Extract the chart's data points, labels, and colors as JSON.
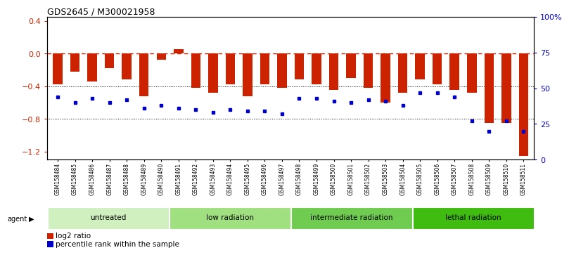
{
  "title": "GDS2645 / M300021958",
  "samples": [
    "GSM158484",
    "GSM158485",
    "GSM158486",
    "GSM158487",
    "GSM158488",
    "GSM158489",
    "GSM158490",
    "GSM158491",
    "GSM158492",
    "GSM158493",
    "GSM158494",
    "GSM158495",
    "GSM158496",
    "GSM158497",
    "GSM158498",
    "GSM158499",
    "GSM158500",
    "GSM158501",
    "GSM158502",
    "GSM158503",
    "GSM158504",
    "GSM158505",
    "GSM158506",
    "GSM158507",
    "GSM158508",
    "GSM158509",
    "GSM158510",
    "GSM158511"
  ],
  "log2_ratio": [
    -0.38,
    -0.22,
    -0.34,
    -0.18,
    -0.32,
    -0.52,
    -0.08,
    0.05,
    -0.42,
    -0.48,
    -0.38,
    -0.52,
    -0.38,
    -0.42,
    -0.32,
    -0.38,
    -0.45,
    -0.3,
    -0.42,
    -0.6,
    -0.48,
    -0.32,
    -0.38,
    -0.45,
    -0.48,
    -0.85,
    -0.85,
    -1.25
  ],
  "percentile_rank": [
    44,
    40,
    43,
    40,
    42,
    36,
    38,
    36,
    35,
    33,
    35,
    34,
    34,
    32,
    43,
    43,
    41,
    40,
    42,
    41,
    38,
    47,
    47,
    44,
    27,
    20,
    27,
    20
  ],
  "groups": [
    {
      "label": "untreated",
      "start": 0,
      "end": 7,
      "color": "#d0f0c0"
    },
    {
      "label": "low radiation",
      "start": 7,
      "end": 14,
      "color": "#a0e080"
    },
    {
      "label": "intermediate radiation",
      "start": 14,
      "end": 21,
      "color": "#70cc50"
    },
    {
      "label": "lethal radiation",
      "start": 21,
      "end": 28,
      "color": "#40bb10"
    }
  ],
  "ylim_left": [
    -1.3,
    0.45
  ],
  "ylim_right": [
    0,
    100
  ],
  "right_ticks": [
    0,
    25,
    50,
    75,
    100
  ],
  "right_tick_labels": [
    "0",
    "25",
    "50",
    "75",
    "100%"
  ],
  "left_ticks": [
    -1.2,
    -0.8,
    -0.4,
    0,
    0.4
  ],
  "bar_color": "#cc2200",
  "dot_color": "#0000cc",
  "ref_line_color": "#cc2200",
  "grid_color": "#000000",
  "background_color": "#ffffff"
}
